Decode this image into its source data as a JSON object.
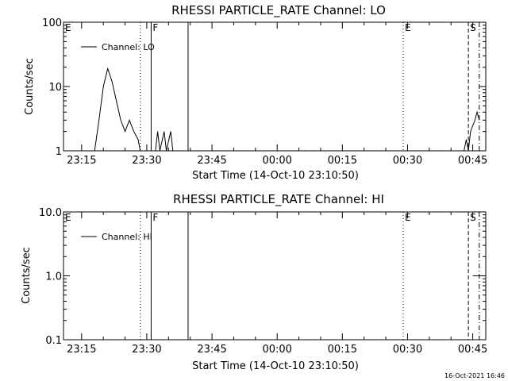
{
  "chart_data": [
    {
      "type": "line",
      "title": "RHESSI PARTICLE_RATE Channel: LO",
      "xlabel": "Start Time (14-Oct-10 23:10:50)",
      "ylabel": "Counts/sec",
      "yscale": "log",
      "ylim": [
        1,
        100
      ],
      "ytick_labels": [
        "1",
        "10",
        "100"
      ],
      "xlim": [
        "23:10:50",
        "00:48:00"
      ],
      "xtick_labels": [
        "23:15",
        "23:30",
        "23:45",
        "00:00",
        "00:15",
        "00:30",
        "00:45"
      ],
      "legend": {
        "position": "upper-left",
        "entries": [
          "Channel: LO"
        ]
      },
      "grid": false,
      "series": [
        {
          "name": "Channel: LO",
          "points": [
            [
              "23:18:00",
              1
            ],
            [
              "23:19:00",
              3
            ],
            [
              "23:20:00",
              10
            ],
            [
              "23:21:00",
              19
            ],
            [
              "23:22:00",
              12
            ],
            [
              "23:23:00",
              6
            ],
            [
              "23:24:00",
              3
            ],
            [
              "23:25:00",
              2
            ],
            [
              "23:26:00",
              3
            ],
            [
              "23:27:00",
              2
            ],
            [
              "23:28:00",
              1.5
            ],
            [
              "23:28:30",
              1
            ],
            null,
            [
              "23:32:00",
              1
            ],
            [
              "23:32:30",
              2
            ],
            [
              "23:33:00",
              1
            ],
            [
              "23:34:00",
              2
            ],
            [
              "23:34:30",
              1
            ],
            [
              "23:35:30",
              2
            ],
            [
              "23:36:00",
              1
            ],
            null,
            [
              "00:43:00",
              1
            ],
            [
              "00:43:30",
              1.5
            ],
            [
              "00:44:00",
              1
            ],
            [
              "00:44:30",
              2
            ],
            [
              "00:45:30",
              3
            ],
            [
              "00:46:00",
              4
            ],
            [
              "00:46:30",
              3
            ]
          ]
        }
      ],
      "flags": [
        {
          "label": "E",
          "time": "23:10:50",
          "style": "solid"
        },
        {
          "label": "",
          "time": "23:28:30",
          "style": "dotted"
        },
        {
          "label": "F",
          "time": "23:31:00",
          "style": "solid"
        },
        {
          "label": "",
          "time": "23:39:30",
          "style": "solid"
        },
        {
          "label": "E",
          "time": "00:29:00",
          "style": "dotted"
        },
        {
          "label": "S",
          "time": "00:44:00",
          "style": "dashed"
        },
        {
          "label": "",
          "time": "00:46:30",
          "style": "dashdot"
        }
      ]
    },
    {
      "type": "line",
      "title": "RHESSI PARTICLE_RATE Channel: HI",
      "xlabel": "Start Time (14-Oct-10 23:10:50)",
      "ylabel": "Counts/sec",
      "yscale": "log",
      "ylim": [
        0.1,
        10
      ],
      "ytick_labels": [
        "0.1",
        "1.0",
        "10.0"
      ],
      "xlim": [
        "23:10:50",
        "00:48:00"
      ],
      "xtick_labels": [
        "23:15",
        "23:30",
        "23:45",
        "00:00",
        "00:15",
        "00:30",
        "00:45"
      ],
      "legend": {
        "position": "upper-left",
        "entries": [
          "Channel: HI"
        ]
      },
      "grid": false,
      "series": [
        {
          "name": "Channel: HI",
          "points": [
            [
              "00:45:00",
              1
            ],
            [
              "00:46:30",
              1
            ]
          ]
        }
      ],
      "flags": [
        {
          "label": "E",
          "time": "23:10:50",
          "style": "solid"
        },
        {
          "label": "",
          "time": "23:28:30",
          "style": "dotted"
        },
        {
          "label": "F",
          "time": "23:31:00",
          "style": "solid"
        },
        {
          "label": "",
          "time": "23:39:30",
          "style": "solid"
        },
        {
          "label": "E",
          "time": "00:29:00",
          "style": "dotted"
        },
        {
          "label": "S",
          "time": "00:44:00",
          "style": "dashed"
        },
        {
          "label": "",
          "time": "00:46:30",
          "style": "dashdot"
        }
      ]
    }
  ],
  "footer": {
    "timestamp": "16-Oct-2021 16:46"
  }
}
